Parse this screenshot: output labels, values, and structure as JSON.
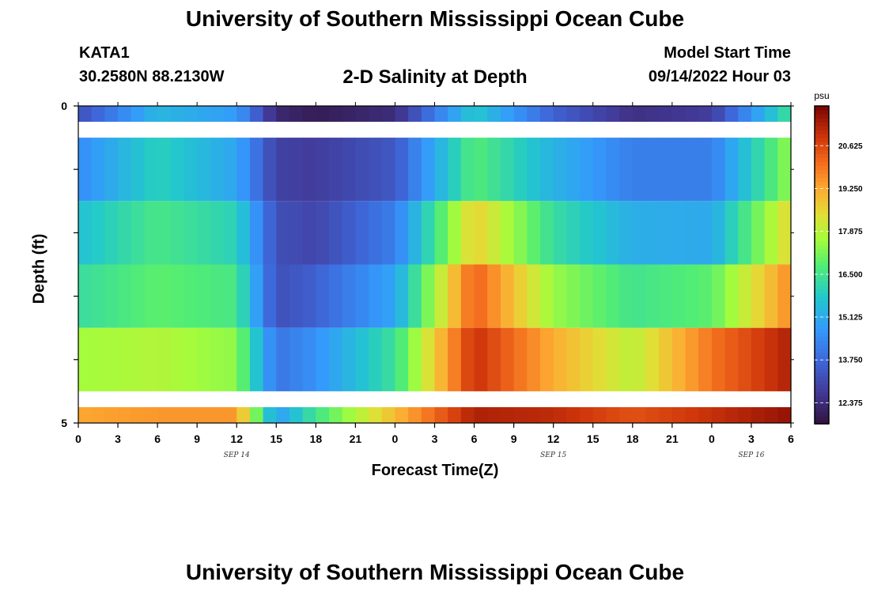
{
  "header": {
    "title": "University of Southern Mississippi Ocean Cube",
    "station_id": "KATA1",
    "station_coords": "30.2580N  88.2130W",
    "plot_title": "2-D Salinity at Depth",
    "model_start_label": "Model Start Time",
    "model_start_value": "09/14/2022 Hour 03"
  },
  "footer": {
    "title": "University of Southern Mississippi Ocean Cube"
  },
  "chart_data": {
    "type": "heatmap",
    "title": "2-D Salinity at Depth",
    "xlabel": "Forecast Time(Z)",
    "ylabel": "Depth (ft)",
    "x_tick_labels": [
      "0",
      "3",
      "6",
      "9",
      "12",
      "15",
      "18",
      "21",
      "0",
      "3",
      "6",
      "9",
      "12",
      "15",
      "18",
      "21",
      "0",
      "3",
      "6"
    ],
    "date_labels": [
      {
        "text": "SEP 14",
        "tick_index": 4
      },
      {
        "text": "SEP 15",
        "tick_index": 12
      },
      {
        "text": "SEP 16",
        "tick_index": 17
      }
    ],
    "y_tick_labels": {
      "top": "0",
      "bottom": "5"
    },
    "ylim": [
      0,
      5
    ],
    "colorbar": {
      "unit": "psu",
      "min": 11.7,
      "max": 21.9,
      "tick_values": [
        20.625,
        19.25,
        17.875,
        16.5,
        15.125,
        13.75,
        12.375
      ],
      "tick_labels": [
        "20.625",
        "19.250",
        "17.875",
        "16.500",
        "15.125",
        "13.750",
        "12.375"
      ]
    },
    "time_hours": [
      0,
      6,
      12,
      15,
      18,
      24,
      30,
      36,
      42,
      48,
      54
    ],
    "rows": [
      {
        "depth_ft": 0,
        "band_ft": 0.5,
        "values": [
          13.2,
          15.4,
          14.8,
          12.3,
          12.0,
          12.4,
          15.8,
          13.6,
          12.5,
          12.8,
          16.5
        ]
      },
      {
        "depth_ft": 1,
        "band_ft": 1.0,
        "values": [
          14.5,
          16.0,
          15.0,
          12.9,
          12.8,
          13.4,
          16.8,
          15.3,
          14.2,
          14.2,
          17.5
        ]
      },
      {
        "depth_ft": 2,
        "band_ft": 1.0,
        "values": [
          15.6,
          16.6,
          16.0,
          13.2,
          13.0,
          14.2,
          18.7,
          16.3,
          15.2,
          15.1,
          18.6
        ]
      },
      {
        "depth_ft": 3,
        "band_ft": 1.0,
        "values": [
          16.3,
          16.9,
          16.6,
          13.2,
          13.6,
          15.0,
          20.3,
          17.5,
          16.5,
          16.9,
          19.7
        ]
      },
      {
        "depth_ft": 4,
        "band_ft": 1.0,
        "values": [
          17.6,
          17.8,
          17.4,
          14.0,
          14.6,
          16.4,
          21.0,
          19.2,
          17.9,
          20.0,
          21.3
        ]
      },
      {
        "depth_ft": 5,
        "band_ft": 0.5,
        "values": [
          19.3,
          19.5,
          19.5,
          14.8,
          16.5,
          19.0,
          21.3,
          21.1,
          20.5,
          21.0,
          21.6
        ]
      }
    ]
  }
}
